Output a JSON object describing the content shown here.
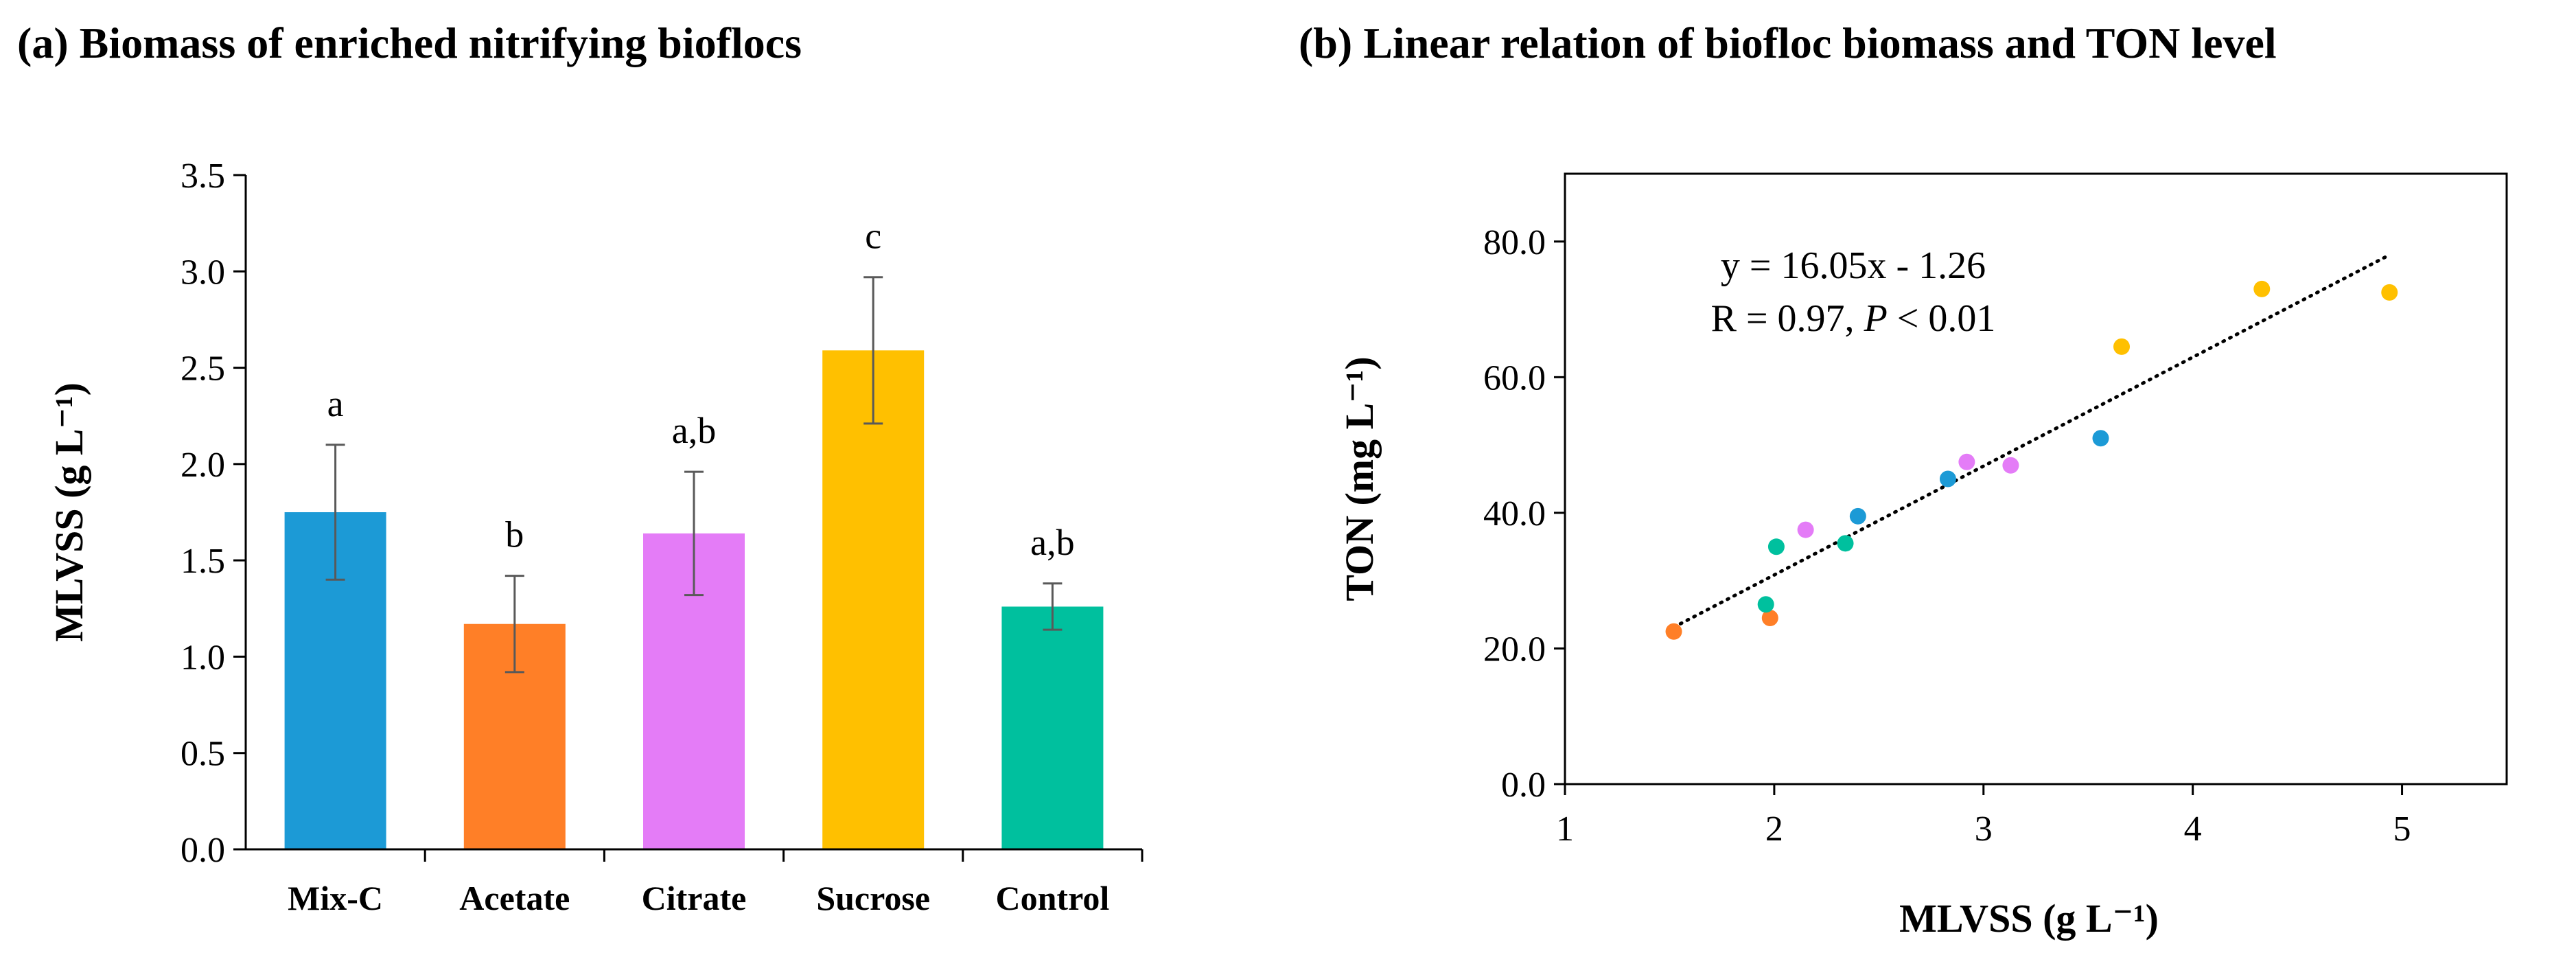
{
  "chart_data": [
    {
      "type": "bar",
      "title": "(a)  Biomass of enriched nitrifying bioflocs",
      "xlabel": "",
      "ylabel": "MLVSS (g L⁻¹)",
      "ylim": [
        0,
        3.5
      ],
      "yticks": [
        "0.0",
        "0.5",
        "1.0",
        "1.5",
        "2.0",
        "2.5",
        "3.0",
        "3.5"
      ],
      "categories": [
        "Mix-C",
        "Acetate",
        "Citrate",
        "Sucrose",
        "Control"
      ],
      "values": [
        1.75,
        1.17,
        1.64,
        2.59,
        1.26
      ],
      "errors": [
        0.35,
        0.25,
        0.32,
        0.38,
        0.12
      ],
      "significance": [
        "a",
        "b",
        "a,b",
        "c",
        "a,b"
      ],
      "colors": [
        "#1C9AD6",
        "#FF7F27",
        "#E47CF7",
        "#FFC000",
        "#00C09E"
      ],
      "grid": false
    },
    {
      "type": "scatter",
      "title": "(b) Linear relation of biofloc biomass and TON level",
      "xlabel": "MLVSS (g L⁻¹)",
      "ylabel": "TON (mg L⁻¹)",
      "xlim": [
        1,
        5.5
      ],
      "ylim": [
        0,
        90
      ],
      "xticks": [
        "1",
        "2",
        "3",
        "4",
        "5"
      ],
      "yticks": [
        "0.0",
        "20.0",
        "40.0",
        "60.0",
        "80.0"
      ],
      "points": [
        {
          "x": 1.52,
          "y": 22.5,
          "group": "Acetate"
        },
        {
          "x": 1.98,
          "y": 24.5,
          "group": "Acetate"
        },
        {
          "x": 1.96,
          "y": 26.5,
          "group": "Control"
        },
        {
          "x": 2.01,
          "y": 35.0,
          "group": "Control"
        },
        {
          "x": 2.34,
          "y": 35.5,
          "group": "Control"
        },
        {
          "x": 2.15,
          "y": 37.5,
          "group": "Citrate"
        },
        {
          "x": 2.92,
          "y": 47.5,
          "group": "Citrate"
        },
        {
          "x": 3.13,
          "y": 47.0,
          "group": "Citrate"
        },
        {
          "x": 2.4,
          "y": 39.5,
          "group": "Mix-C"
        },
        {
          "x": 2.83,
          "y": 45.0,
          "group": "Mix-C"
        },
        {
          "x": 3.56,
          "y": 51.0,
          "group": "Mix-C"
        },
        {
          "x": 3.66,
          "y": 64.5,
          "group": "Sucrose"
        },
        {
          "x": 4.33,
          "y": 73.0,
          "group": "Sucrose"
        },
        {
          "x": 4.94,
          "y": 72.5,
          "group": "Sucrose"
        }
      ],
      "group_colors": {
        "Mix-C": "#1C9AD6",
        "Acetate": "#FF7F27",
        "Citrate": "#E47CF7",
        "Sucrose": "#FFC000",
        "Control": "#00C09E"
      },
      "trendline": {
        "slope": 16.05,
        "intercept": -1.26,
        "x_range": [
          1.52,
          4.94
        ],
        "style": "dotted"
      },
      "annotation": {
        "line1": "y = 16.05x - 1.26",
        "line2_prefix": "R = 0.97, ",
        "line2_italic": "P",
        "line2_suffix": " < 0.01"
      },
      "grid": false
    }
  ]
}
